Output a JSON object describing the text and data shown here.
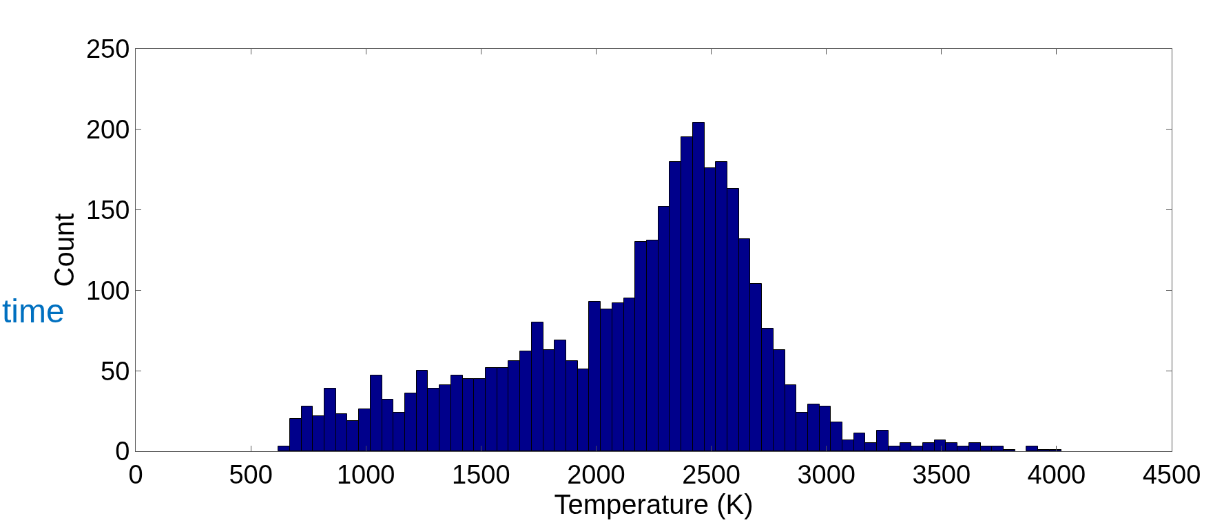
{
  "chart_data": {
    "type": "histogram",
    "xlabel": "Temperature (K)",
    "ylabel": "Count",
    "annotations": [
      "time"
    ],
    "bins": [
      620,
      670,
      720,
      770,
      820,
      870,
      920,
      970,
      1020,
      1070,
      1120,
      1170,
      1220,
      1270,
      1320,
      1370,
      1420,
      1470,
      1520,
      1570,
      1620,
      1670,
      1720,
      1770,
      1820,
      1870,
      1920,
      1970,
      2020,
      2070,
      2120,
      2170,
      2220,
      2270,
      2320,
      2370,
      2420,
      2470,
      2520,
      2570,
      2620,
      2670,
      2720,
      2770,
      2820,
      2870,
      2920,
      2970,
      3020,
      3070,
      3120,
      3170,
      3220,
      3270,
      3320,
      3370,
      3420,
      3470,
      3520,
      3570,
      3620,
      3670,
      3720,
      3770,
      3820,
      3870,
      3920,
      3970,
      4020
    ],
    "values": [
      3,
      20,
      28,
      22,
      39,
      23,
      19,
      26,
      47,
      32,
      24,
      36,
      50,
      39,
      41,
      47,
      45,
      45,
      52,
      52,
      56,
      62,
      80,
      63,
      69,
      56,
      51,
      93,
      88,
      92,
      95,
      130,
      131,
      152,
      180,
      195,
      204,
      176,
      180,
      163,
      132,
      104,
      76,
      63,
      41,
      24,
      29,
      28,
      18,
      7,
      11,
      5,
      13,
      3,
      5,
      3,
      5,
      7,
      5,
      3,
      5,
      3,
      3,
      1,
      0,
      3,
      1,
      1
    ],
    "color": "#00008b",
    "xlim": [
      0,
      4500
    ],
    "xticks": [
      0,
      500,
      1000,
      1500,
      2000,
      2500,
      3000,
      3500,
      4000,
      4500
    ],
    "yticks": [
      0,
      50,
      100,
      150,
      200,
      250
    ],
    "ylim": [
      0,
      250
    ]
  }
}
